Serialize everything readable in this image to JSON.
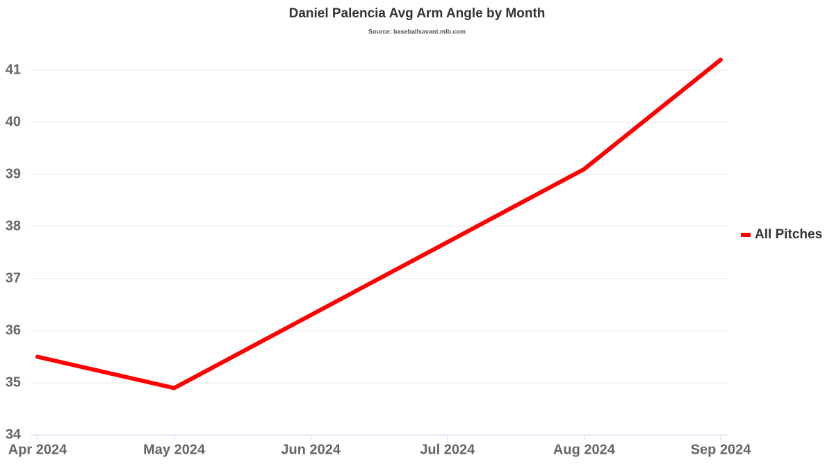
{
  "chart_data": {
    "type": "line",
    "title": "Daniel Palencia Avg Arm Angle by Month",
    "subtitle": "Source: baseballsavant.mlb.com",
    "x": [
      "Apr 2024",
      "May 2024",
      "Jun 2024",
      "Jul 2024",
      "Aug 2024",
      "Sep 2024"
    ],
    "series": [
      {
        "name": "All Pitches",
        "color": "#ff0000",
        "values": [
          35.5,
          34.9,
          36.3,
          37.7,
          39.1,
          41.2
        ]
      }
    ],
    "ylim": [
      34,
      41.4
    ],
    "yticks": [
      34,
      35,
      36,
      37,
      38,
      39,
      40,
      41
    ],
    "grid": true,
    "legend": "right"
  }
}
